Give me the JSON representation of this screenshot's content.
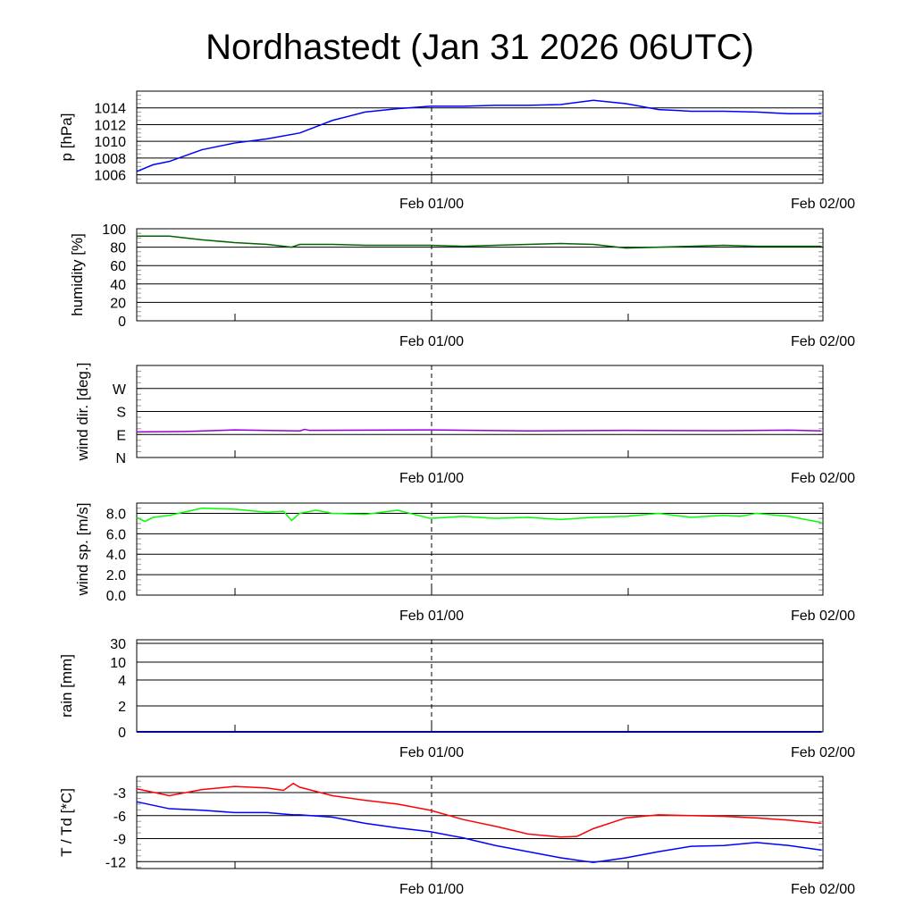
{
  "title": "Nordhastedt (Jan 31 2026 06UTC)",
  "chart_data": [
    {
      "type": "line",
      "id": "pressure",
      "ylabel": "p [hPa]",
      "ylim": [
        1005.0,
        1016.0
      ],
      "yticks": [
        1006,
        1008,
        1010,
        1012,
        1014
      ],
      "ytick_labels": [
        "1006",
        "1008",
        "1010",
        "1012",
        "1014"
      ],
      "x_hours_since_start": [
        0,
        1,
        2,
        4,
        6,
        8,
        10,
        12,
        14,
        16,
        18,
        20,
        22,
        24,
        26,
        28,
        30,
        32,
        34,
        36,
        38,
        40,
        42
      ],
      "series": [
        {
          "name": "pressure",
          "color": "#0000ff",
          "values": [
            1006.4,
            1007.2,
            1007.6,
            1009.0,
            1009.8,
            1010.3,
            1011.0,
            1012.5,
            1013.5,
            1013.9,
            1014.2,
            1014.2,
            1014.3,
            1014.3,
            1014.4,
            1014.9,
            1014.5,
            1013.8,
            1013.6,
            1013.6,
            1013.5,
            1013.3,
            1013.3
          ]
        }
      ],
      "xtick_labels": [
        "Feb 01/00",
        "Feb 02/00"
      ]
    },
    {
      "type": "line",
      "id": "humidity",
      "ylabel": "humidity [%]",
      "ylim": [
        0,
        100
      ],
      "yticks": [
        0,
        20,
        40,
        60,
        80,
        100
      ],
      "ytick_labels": [
        "0",
        "20",
        "40",
        "60",
        "80",
        "100"
      ],
      "x_hours_since_start": [
        0,
        2,
        4,
        6,
        8,
        9.5,
        10,
        12,
        14,
        16,
        18,
        20,
        22,
        24,
        26,
        28,
        30,
        32,
        34,
        36,
        38,
        40,
        42
      ],
      "series": [
        {
          "name": "humidity",
          "color": "#006400",
          "values": [
            92,
            92,
            88,
            85,
            83,
            80,
            83,
            83,
            82,
            82,
            82,
            81,
            82,
            83,
            84,
            83,
            79,
            80,
            81,
            82,
            81,
            81,
            81
          ]
        }
      ],
      "xtick_labels": [
        "Feb 01/00",
        "Feb 02/00"
      ]
    },
    {
      "type": "line",
      "id": "winddir",
      "ylabel": "wind dir. [deg.]",
      "ylim": [
        0,
        360
      ],
      "yticks": [
        0,
        90,
        180,
        270
      ],
      "ytick_labels": [
        "N",
        "E",
        "S",
        "W"
      ],
      "x_hours_since_start": [
        0,
        3,
        6,
        10,
        10.3,
        10.6,
        14,
        18,
        24,
        30,
        36,
        40,
        42
      ],
      "series": [
        {
          "name": "wind direction",
          "color": "#9400d3",
          "values": [
            100,
            102,
            108,
            104,
            110,
            106,
            107,
            108,
            104,
            106,
            105,
            107,
            104
          ]
        }
      ],
      "xtick_labels": [
        "Feb 01/00",
        "Feb 02/00"
      ]
    },
    {
      "type": "line",
      "id": "windspeed",
      "ylabel": "wind sp. [m/s]",
      "ylim": [
        0,
        9.0
      ],
      "yticks": [
        0,
        2,
        4,
        6,
        8
      ],
      "ytick_labels": [
        "0.0",
        "2.0",
        "4.0",
        "6.0",
        "8.0"
      ],
      "x_hours_since_start": [
        0,
        0.5,
        1,
        2,
        4,
        6,
        8,
        9,
        9.5,
        10,
        11,
        12,
        14,
        16,
        18,
        20,
        22,
        24,
        26,
        28,
        30,
        32,
        34,
        36,
        37,
        38,
        40,
        42
      ],
      "series": [
        {
          "name": "wind speed",
          "color": "#00ff00",
          "values": [
            7.6,
            7.2,
            7.6,
            7.8,
            8.5,
            8.4,
            8.1,
            8.2,
            7.3,
            8.0,
            8.3,
            8.0,
            7.9,
            8.3,
            7.5,
            7.7,
            7.5,
            7.6,
            7.4,
            7.6,
            7.7,
            8.0,
            7.6,
            7.8,
            7.7,
            8.0,
            7.7,
            7.1
          ]
        }
      ],
      "xtick_labels": [
        "Feb 01/00",
        "Feb 02/00"
      ]
    },
    {
      "type": "line",
      "id": "rain",
      "ylabel": "rain [mm]",
      "ylim": [
        0,
        30
      ],
      "yticks": [
        0,
        2,
        4,
        10,
        30
      ],
      "ytick_labels": [
        "0",
        "2",
        "4",
        "10",
        "30"
      ],
      "x_hours_since_start": [
        0,
        42
      ],
      "series": [
        {
          "name": "rain",
          "color": "#00008b",
          "values": [
            0,
            0
          ]
        }
      ],
      "xtick_labels": [
        "Feb 01/00",
        "Feb 02/00"
      ]
    },
    {
      "type": "line",
      "id": "temp",
      "ylabel": "T / Td [*C]",
      "ylim": [
        -12.9,
        -0.9
      ],
      "yticks": [
        -12,
        -9,
        -6,
        -3
      ],
      "ytick_labels": [
        "-12",
        "-9",
        "-6",
        "-3"
      ],
      "x_hours_since_start": [
        0,
        2,
        4,
        6,
        8,
        9,
        9.6,
        10,
        12,
        14,
        16,
        18,
        20,
        22,
        24,
        26,
        27,
        28,
        30,
        32,
        34,
        36,
        38,
        40,
        42
      ],
      "series": [
        {
          "name": "T",
          "color": "#ff0000",
          "values": [
            -2.5,
            -3.4,
            -2.6,
            -2.2,
            -2.4,
            -2.7,
            -1.8,
            -2.3,
            -3.4,
            -4.0,
            -4.5,
            -5.3,
            -6.5,
            -7.4,
            -8.4,
            -8.8,
            -8.7,
            -7.7,
            -6.3,
            -5.9,
            -6.0,
            -6.1,
            -6.3,
            -6.6,
            -7.0
          ]
        },
        {
          "name": "Td",
          "color": "#0000ff",
          "values": [
            -4.2,
            -5.1,
            -5.3,
            -5.6,
            -5.6,
            -5.8,
            -5.9,
            -5.9,
            -6.2,
            -7.0,
            -7.6,
            -8.1,
            -8.9,
            -9.9,
            -10.7,
            -11.5,
            -11.8,
            -12.1,
            -11.5,
            -10.7,
            -10.0,
            -9.9,
            -9.5,
            -9.9,
            -10.5
          ]
        }
      ],
      "xtick_labels": [
        "Feb 01/00",
        "Feb 02/00"
      ]
    }
  ]
}
